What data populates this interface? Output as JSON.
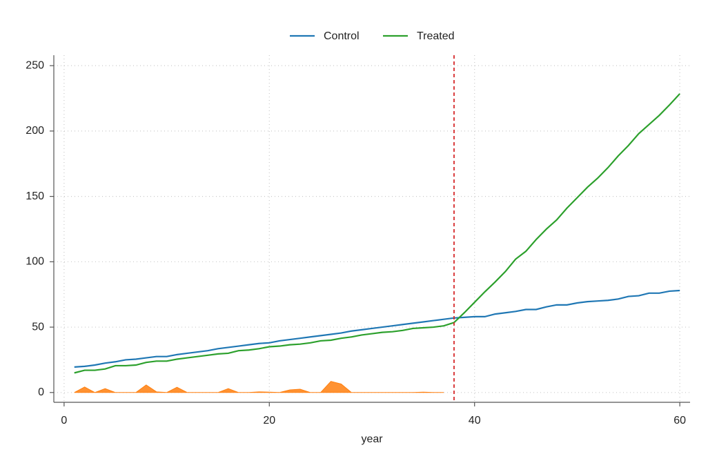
{
  "chart_data": {
    "type": "line",
    "xlabel": "year",
    "x": [
      1,
      2,
      3,
      4,
      5,
      6,
      7,
      8,
      9,
      10,
      11,
      12,
      13,
      14,
      15,
      16,
      17,
      18,
      19,
      20,
      21,
      22,
      23,
      24,
      25,
      26,
      27,
      28,
      29,
      30,
      31,
      32,
      33,
      34,
      35,
      36,
      37,
      38,
      39,
      40,
      41,
      42,
      43,
      44,
      45,
      46,
      47,
      48,
      49,
      50,
      51,
      52,
      53,
      54,
      55,
      56,
      57,
      58,
      59,
      60
    ],
    "series": [
      {
        "name": "Control",
        "color": "#1f77b4",
        "values": [
          19.5,
          20,
          21,
          22.5,
          23.5,
          25,
          25.5,
          26.5,
          27.5,
          27.5,
          29,
          30,
          31,
          32,
          33.5,
          34.5,
          35.5,
          36.5,
          37.5,
          38,
          39.5,
          40.5,
          41.5,
          42.5,
          43.5,
          44.5,
          45.5,
          47,
          48,
          49,
          50,
          51,
          52,
          53,
          54,
          55,
          56,
          57,
          57.5,
          58,
          58,
          60,
          61,
          62,
          63.5,
          63.5,
          65.5,
          67,
          67,
          68.5,
          69.5,
          70,
          70.5,
          71.5,
          73.5,
          74,
          76,
          76,
          77.5,
          78
        ]
      },
      {
        "name": "Treated",
        "color": "#2ca02c",
        "values": [
          15,
          17,
          17,
          18,
          20.5,
          20.5,
          21,
          23,
          24,
          24,
          25.5,
          26.5,
          27.5,
          28.5,
          29.5,
          30,
          32,
          32.5,
          33.5,
          35,
          35.5,
          36.5,
          37,
          38,
          39.5,
          40,
          41.5,
          42.5,
          44,
          45,
          46,
          46.5,
          47.5,
          49,
          49.5,
          50,
          51,
          53.5,
          61,
          69,
          77,
          84.5,
          92.5,
          102,
          108,
          117,
          125,
          132,
          141,
          149,
          157,
          164,
          172,
          181,
          189,
          198,
          205,
          212,
          220,
          228.5
        ]
      }
    ],
    "area": {
      "color": "#ff7f0e",
      "values": [
        0,
        4.2,
        0,
        3,
        0,
        0,
        0,
        5.8,
        0.5,
        0,
        4,
        0,
        0,
        0,
        0,
        3,
        0,
        0,
        0.5,
        0.3,
        0,
        2,
        2.5,
        0,
        0,
        8.5,
        6.5,
        0,
        0,
        0,
        0,
        0,
        0,
        0,
        0.3,
        0,
        0,
        null,
        null,
        null,
        null,
        null,
        null,
        null,
        null,
        null,
        null,
        null,
        null,
        null,
        null,
        null,
        null,
        null,
        null,
        null,
        null,
        null,
        null,
        null
      ]
    },
    "vline": {
      "x": 38,
      "color": "#d62728"
    },
    "xlim": [
      -1,
      61
    ],
    "ylim": [
      -7.5,
      258
    ],
    "xticks": [
      0,
      20,
      40,
      60
    ],
    "yticks": [
      0,
      50,
      100,
      150,
      200,
      250
    ],
    "grid": true,
    "legend": "top"
  }
}
